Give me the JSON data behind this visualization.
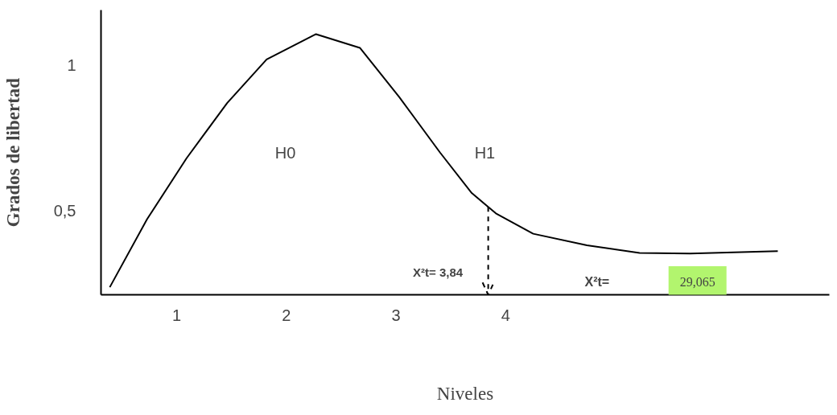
{
  "chart_data": {
    "type": "line",
    "xlabel": "Niveles",
    "ylabel": "Grados de libertad",
    "x": [
      0.39,
      0.73,
      1.09,
      1.46,
      1.82,
      2.27,
      2.67,
      3.03,
      3.4,
      3.69,
      3.91,
      4.25,
      4.74,
      5.22,
      5.68,
      6.48
    ],
    "series": [
      {
        "color": "#000000",
        "values": [
          0.236,
          0.47,
          0.68,
          0.87,
          1.02,
          1.107,
          1.06,
          0.89,
          0.7,
          0.56,
          0.49,
          0.42,
          0.38,
          0.354,
          0.352,
          0.36
        ]
      }
    ],
    "xlim": [
      0.31,
      6.95
    ],
    "ylim": [
      0.21,
      1.19
    ],
    "xticks": [
      1,
      2,
      3,
      4
    ],
    "yticks": [
      {
        "value": 0.5,
        "label": "0,5"
      },
      1
    ],
    "grid": false,
    "marker": "none",
    "line_style": "solid",
    "ref_lines": [
      {
        "axis": "x",
        "value": 3.84,
        "label": "X²t=          3,84",
        "line_style": "dashed"
      }
    ],
    "annotations": [
      "H0",
      "H1",
      "X²t=",
      "29,065"
    ]
  }
}
